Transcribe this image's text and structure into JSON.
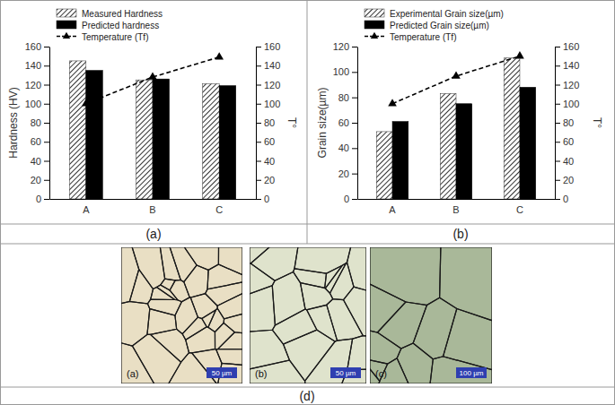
{
  "chart_data": [
    {
      "type": "bar",
      "caption": "(a)",
      "categories": [
        "A",
        "B",
        "C"
      ],
      "ylabel": "Hardness (HV)",
      "y2label": "T°",
      "ylim": [
        0,
        160
      ],
      "yticks": [
        0,
        20,
        40,
        60,
        80,
        100,
        120,
        140,
        160
      ],
      "y2lim": [
        0,
        160
      ],
      "y2ticks": [
        0,
        20,
        40,
        60,
        80,
        100,
        120,
        140,
        160
      ],
      "legend": "upper left",
      "series": [
        {
          "name": "Measured Hardness",
          "type": "bar",
          "color": "#333333",
          "values": [
            145,
            125,
            121
          ]
        },
        {
          "name": "Predicted hardness",
          "type": "bar",
          "color": "#000000",
          "values": [
            135,
            126,
            119
          ]
        },
        {
          "name": "Temperature (Tf)",
          "type": "line",
          "axis": "y2",
          "color": "#000000",
          "marker": "triangle",
          "line_style": "dashed",
          "values": [
            100,
            128,
            149
          ]
        }
      ]
    },
    {
      "type": "bar",
      "caption": "(b)",
      "categories": [
        "A",
        "B",
        "C"
      ],
      "ylabel": "Grain size(µm)",
      "y2label": "T°",
      "ylim": [
        0,
        120
      ],
      "yticks": [
        0,
        20,
        40,
        60,
        80,
        100,
        120
      ],
      "y2lim": [
        0,
        160
      ],
      "y2ticks": [
        0,
        20,
        40,
        60,
        80,
        100,
        120,
        140,
        160
      ],
      "legend": "upper left",
      "series": [
        {
          "name": "Experimental Grain size(µm)",
          "type": "bar",
          "color": "#333333",
          "values": [
            53,
            83,
            111
          ]
        },
        {
          "name": "Predicted Grain size(µm)",
          "type": "bar",
          "color": "#000000",
          "values": [
            61,
            75,
            88
          ]
        },
        {
          "name": "Temperature (Tf)",
          "type": "line",
          "axis": "y2",
          "color": "#000000",
          "marker": "triangle",
          "line_style": "dashed",
          "values": [
            100,
            129,
            150
          ]
        }
      ]
    }
  ],
  "figure": {
    "caption": "(d)",
    "micrographs": [
      {
        "label": "(a)",
        "scale_bar": "50 µm"
      },
      {
        "label": "(b)",
        "scale_bar": "50 µm"
      },
      {
        "label": "(c)",
        "scale_bar": "100 µm"
      }
    ]
  }
}
